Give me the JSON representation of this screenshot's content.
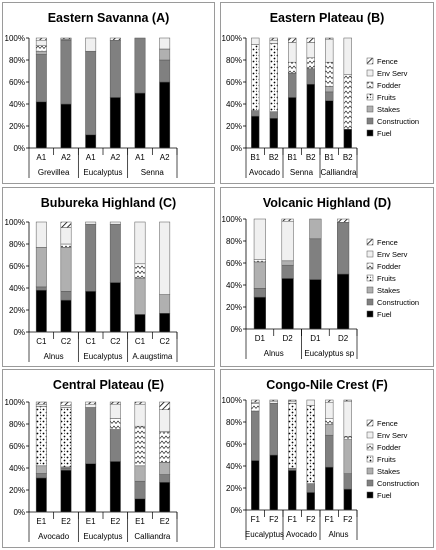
{
  "legend_labels": [
    "Fence",
    "Env Serv",
    "Fodder",
    "Fruits",
    "Stakes",
    "Construction",
    "Fuel"
  ],
  "category_keys": [
    "fuel",
    "construction",
    "stakes",
    "fruits",
    "fodder",
    "env_serv",
    "fence"
  ],
  "category_styles": {
    "fuel": "#000000",
    "construction": "#808080",
    "stakes": "#b0b0b0",
    "fruits": "pattern:fruits",
    "fodder": "pattern:fodder",
    "env_serv": "#f0f0f0",
    "fence": "pattern:fence"
  },
  "chart_data": [
    {
      "type": "bar",
      "stacked": true,
      "title": "Eastern Savanna (A)",
      "yticks": [
        "0%",
        "20%",
        "40%",
        "60%",
        "80%",
        "100%"
      ],
      "ylim": [
        0,
        100
      ],
      "categories": [
        "A1",
        "A2",
        "A1",
        "A2",
        "A1",
        "A2"
      ],
      "groups": [
        {
          "label": "Grevillea",
          "span": [
            0,
            1
          ]
        },
        {
          "label": "Eucalyptus",
          "span": [
            2,
            3
          ]
        },
        {
          "label": "Senna",
          "span": [
            4,
            5
          ]
        }
      ],
      "series": [
        {
          "key": "fuel",
          "values": [
            42,
            40,
            12,
            46,
            50,
            60
          ]
        },
        {
          "key": "construction",
          "values": [
            43,
            58,
            76,
            52,
            50,
            20
          ]
        },
        {
          "key": "stakes",
          "values": [
            3,
            1,
            0,
            0,
            0,
            10
          ]
        },
        {
          "key": "fruits",
          "values": [
            0,
            0,
            0,
            0,
            0,
            0
          ]
        },
        {
          "key": "fodder",
          "values": [
            5,
            0,
            0,
            0,
            0,
            0
          ]
        },
        {
          "key": "env_serv",
          "values": [
            5,
            0,
            12,
            0,
            0,
            10
          ]
        },
        {
          "key": "fence",
          "values": [
            2,
            1,
            0,
            2,
            0,
            0
          ]
        }
      ]
    },
    {
      "type": "bar",
      "stacked": true,
      "title": "Eastern Plateau (B)",
      "yticks": [
        "0%",
        "20%",
        "40%",
        "60%",
        "80%",
        "100%"
      ],
      "ylim": [
        0,
        100
      ],
      "categories": [
        "B1",
        "B2",
        "B1",
        "B2",
        "B1",
        "B2"
      ],
      "groups": [
        {
          "label": "Avocado",
          "span": [
            0,
            1
          ]
        },
        {
          "label": "Senna",
          "span": [
            2,
            3
          ]
        },
        {
          "label": "Calliandra",
          "span": [
            4,
            5
          ]
        }
      ],
      "series": [
        {
          "key": "fuel",
          "values": [
            29,
            27,
            46,
            58,
            43,
            17
          ]
        },
        {
          "key": "construction",
          "values": [
            5,
            6,
            22,
            14,
            8,
            0
          ]
        },
        {
          "key": "stakes",
          "values": [
            0,
            0,
            0,
            0,
            5,
            0
          ]
        },
        {
          "key": "fruits",
          "values": [
            60,
            62,
            0,
            0,
            0,
            0
          ]
        },
        {
          "key": "fodder",
          "values": [
            0,
            0,
            10,
            10,
            22,
            50
          ]
        },
        {
          "key": "env_serv",
          "values": [
            6,
            3,
            18,
            14,
            21,
            33
          ]
        },
        {
          "key": "fence",
          "values": [
            0,
            2,
            4,
            4,
            1,
            0
          ]
        }
      ]
    },
    {
      "type": "bar",
      "stacked": true,
      "title": "Bubureka Highland (C)",
      "yticks": [
        "0%",
        "20%",
        "40%",
        "60%",
        "80%",
        "100%"
      ],
      "ylim": [
        0,
        100
      ],
      "categories": [
        "C1",
        "C2",
        "C1",
        "C2",
        "C1",
        "C2"
      ],
      "groups": [
        {
          "label": "Alnus",
          "span": [
            0,
            1
          ]
        },
        {
          "label": "Eucalyptus",
          "span": [
            2,
            3
          ]
        },
        {
          "label": "A.augstima",
          "span": [
            4,
            5
          ]
        }
      ],
      "series": [
        {
          "key": "fuel",
          "values": [
            38,
            29,
            37,
            45,
            16,
            17
          ]
        },
        {
          "key": "construction",
          "values": [
            3,
            8,
            61,
            53,
            0,
            0
          ]
        },
        {
          "key": "stakes",
          "values": [
            36,
            40,
            0,
            0,
            33,
            17
          ]
        },
        {
          "key": "fruits",
          "values": [
            0,
            0,
            0,
            0,
            0,
            0
          ]
        },
        {
          "key": "fodder",
          "values": [
            0,
            3,
            0,
            0,
            13,
            0
          ]
        },
        {
          "key": "env_serv",
          "values": [
            23,
            15,
            2,
            2,
            38,
            66
          ]
        },
        {
          "key": "fence",
          "values": [
            0,
            5,
            0,
            0,
            0,
            0
          ]
        }
      ]
    },
    {
      "type": "bar",
      "stacked": true,
      "title": "Volcanic Highland (D)",
      "yticks": [
        "0%",
        "20%",
        "40%",
        "60%",
        "80%",
        "100%"
      ],
      "ylim": [
        0,
        100
      ],
      "categories": [
        "D1",
        "D2",
        "D1",
        "D2"
      ],
      "groups": [
        {
          "label": "Alnus",
          "span": [
            0,
            1
          ]
        },
        {
          "label": "Eucalyptus sp",
          "span": [
            2,
            3
          ]
        }
      ],
      "series": [
        {
          "key": "fuel",
          "values": [
            29,
            46,
            45,
            50
          ]
        },
        {
          "key": "construction",
          "values": [
            8,
            12,
            37,
            47
          ]
        },
        {
          "key": "stakes",
          "values": [
            24,
            4,
            18,
            0
          ]
        },
        {
          "key": "fruits",
          "values": [
            0,
            0,
            0,
            0
          ]
        },
        {
          "key": "fodder",
          "values": [
            2,
            0,
            0,
            0
          ]
        },
        {
          "key": "env_serv",
          "values": [
            37,
            36,
            0,
            0
          ]
        },
        {
          "key": "fence",
          "values": [
            0,
            2,
            0,
            3
          ]
        }
      ]
    },
    {
      "type": "bar",
      "stacked": true,
      "title": "Central Plateau (E)",
      "yticks": [
        "0%",
        "20%",
        "40%",
        "60%",
        "80%",
        "100%"
      ],
      "ylim": [
        0,
        100
      ],
      "categories": [
        "E1",
        "E2",
        "E1",
        "E2",
        "E1",
        "E2"
      ],
      "groups": [
        {
          "label": "Avocado",
          "span": [
            0,
            1
          ]
        },
        {
          "label": "Eucalyptus",
          "span": [
            2,
            3
          ]
        },
        {
          "label": "Calliandra",
          "span": [
            4,
            5
          ]
        }
      ],
      "series": [
        {
          "key": "fuel",
          "values": [
            31,
            38,
            44,
            46,
            12,
            27
          ]
        },
        {
          "key": "construction",
          "values": [
            4,
            2,
            51,
            29,
            16,
            7
          ]
        },
        {
          "key": "stakes",
          "values": [
            7,
            1,
            0,
            0,
            14,
            11
          ]
        },
        {
          "key": "fruits",
          "values": [
            54,
            54,
            0,
            0,
            0,
            0
          ]
        },
        {
          "key": "fodder",
          "values": [
            0,
            0,
            0,
            10,
            36,
            28
          ]
        },
        {
          "key": "env_serv",
          "values": [
            2,
            2,
            3,
            13,
            20,
            20
          ]
        },
        {
          "key": "fence",
          "values": [
            2,
            3,
            2,
            2,
            2,
            7
          ]
        }
      ]
    },
    {
      "type": "bar",
      "stacked": true,
      "title": "Congo-Nile Crest (F)",
      "yticks": [
        "0%",
        "20%",
        "40%",
        "60%",
        "80%",
        "100%"
      ],
      "ylim": [
        0,
        100
      ],
      "categories": [
        "F1",
        "F2",
        "F1",
        "F2",
        "F1",
        "F2"
      ],
      "groups": [
        {
          "label": "Eucalyptus",
          "span": [
            0,
            1
          ]
        },
        {
          "label": "Avocado",
          "span": [
            2,
            3
          ]
        },
        {
          "label": "Alnus",
          "span": [
            4,
            5
          ]
        }
      ],
      "series": [
        {
          "key": "fuel",
          "values": [
            45,
            50,
            36,
            16,
            39,
            19
          ]
        },
        {
          "key": "construction",
          "values": [
            45,
            47,
            2,
            8,
            29,
            14
          ]
        },
        {
          "key": "stakes",
          "values": [
            0,
            0,
            0,
            0,
            10,
            31
          ]
        },
        {
          "key": "fruits",
          "values": [
            0,
            0,
            59,
            71,
            0,
            0
          ]
        },
        {
          "key": "fodder",
          "values": [
            7,
            0,
            0,
            0,
            5,
            3
          ]
        },
        {
          "key": "env_serv",
          "values": [
            1,
            2,
            2,
            5,
            15,
            32
          ]
        },
        {
          "key": "fence",
          "values": [
            2,
            1,
            1,
            0,
            2,
            1
          ]
        }
      ]
    }
  ]
}
